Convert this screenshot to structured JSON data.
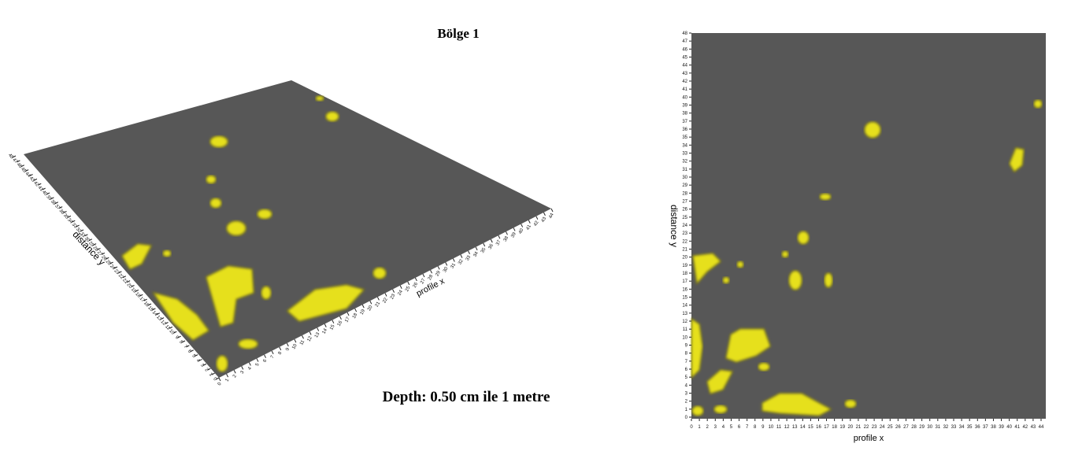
{
  "title": "Bölge 1",
  "caption": "Depth: 0.50 cm ile 1 metre",
  "left_plot": {
    "x_label": "profile x",
    "y_label": "distance y",
    "xticks": [
      0,
      1,
      2,
      3,
      4,
      5,
      6,
      7,
      8,
      9,
      10,
      11,
      12,
      13,
      14,
      15,
      16,
      17,
      18,
      19,
      20,
      21,
      22,
      23,
      24,
      25,
      26,
      27,
      28,
      29,
      30,
      31,
      32,
      33,
      34,
      35,
      36,
      37,
      38,
      39,
      40,
      41,
      42,
      43,
      44
    ],
    "yticks": [
      0,
      1,
      2,
      3,
      4,
      5,
      6,
      7,
      8,
      9,
      10,
      11,
      12,
      13,
      14,
      15,
      16,
      17,
      18,
      19,
      20,
      21,
      22,
      23,
      24,
      25,
      26,
      27,
      28,
      29,
      30,
      31,
      32,
      33,
      34,
      35,
      36,
      37,
      38,
      39,
      40,
      41,
      42,
      43,
      44,
      45,
      46,
      47,
      48
    ]
  },
  "right_plot": {
    "x_label": "profile x",
    "y_label": "distance y",
    "xticks": [
      0,
      1,
      2,
      3,
      4,
      5,
      6,
      7,
      8,
      9,
      10,
      11,
      12,
      13,
      14,
      15,
      16,
      17,
      18,
      19,
      20,
      21,
      22,
      23,
      24,
      25,
      26,
      27,
      28,
      29,
      30,
      31,
      32,
      33,
      34,
      35,
      36,
      37,
      38,
      39,
      40,
      41,
      42,
      43,
      44
    ],
    "yticks": [
      0,
      1,
      2,
      3,
      4,
      5,
      6,
      7,
      8,
      9,
      10,
      11,
      12,
      13,
      14,
      15,
      16,
      17,
      18,
      19,
      20,
      21,
      22,
      23,
      24,
      25,
      26,
      27,
      28,
      29,
      30,
      31,
      32,
      33,
      34,
      35,
      36,
      37,
      38,
      39,
      40,
      41,
      42,
      43,
      44,
      45,
      46,
      47,
      48
    ]
  }
}
